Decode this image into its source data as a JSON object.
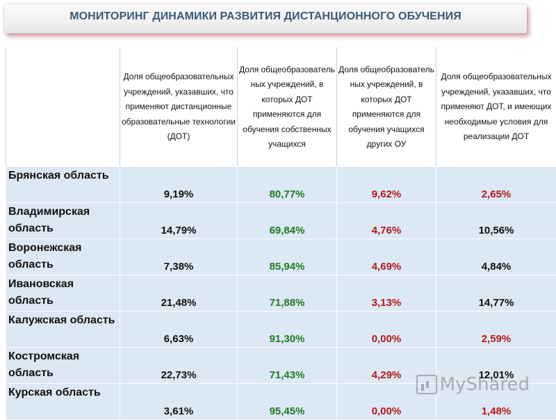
{
  "title": "МОНИТОРИНГ ДИНАМИКИ РАЗВИТИЯ ДИСТАНЦИОННОГО ОБУЧЕНИЯ",
  "colors": {
    "green": "#1f7a1f",
    "red": "#b11a1a",
    "black": "#111111"
  },
  "columns": [
    "Доля общеобразовательных учреждений, указавших, что применяют дистанционные образовательные технологии (ДОТ)",
    "Доля общеобразователь ных учреждений, в которых ДОТ применяются для обучения собственных учащихся",
    "Доля общеобразователь ных учреждений, в которых ДОТ применяются для обучения учащихся других ОУ",
    "Доля общеобразовательных учреждений, указавших, что применяют ДОТ, и имеющих необходимые условия для реализации ДОТ"
  ],
  "rows": [
    {
      "region": "Брянская область",
      "values": [
        "9,19%",
        "80,77%",
        "9,62%",
        "2,65%"
      ],
      "value_colors": [
        "black",
        "green",
        "red",
        "red"
      ]
    },
    {
      "region": "Владимирская область",
      "values": [
        "14,79%",
        "69,84%",
        "4,76%",
        "10,56%"
      ],
      "value_colors": [
        "black",
        "green",
        "red",
        "black"
      ]
    },
    {
      "region": "Воронежская область",
      "values": [
        "7,38%",
        "85,94%",
        "4,69%",
        "4,84%"
      ],
      "value_colors": [
        "black",
        "green",
        "red",
        "black"
      ]
    },
    {
      "region": "Ивановская область",
      "values": [
        "21,48%",
        "71,88%",
        "3,13%",
        "14,77%"
      ],
      "value_colors": [
        "black",
        "green",
        "red",
        "black"
      ]
    },
    {
      "region": "Калужская область",
      "values": [
        "6,63%",
        "91,30%",
        "0,00%",
        "2,59%"
      ],
      "value_colors": [
        "black",
        "green",
        "red",
        "red"
      ]
    },
    {
      "region": "Костромская область",
      "values": [
        "22,73%",
        "71,43%",
        "4,29%",
        "12,01%"
      ],
      "value_colors": [
        "black",
        "green",
        "red",
        "black"
      ]
    },
    {
      "region": "Курская область",
      "values": [
        "3,61%",
        "95,45%",
        "0,00%",
        "1,48%"
      ],
      "value_colors": [
        "black",
        "green",
        "red",
        "red"
      ]
    }
  ],
  "watermark": "MyShared"
}
